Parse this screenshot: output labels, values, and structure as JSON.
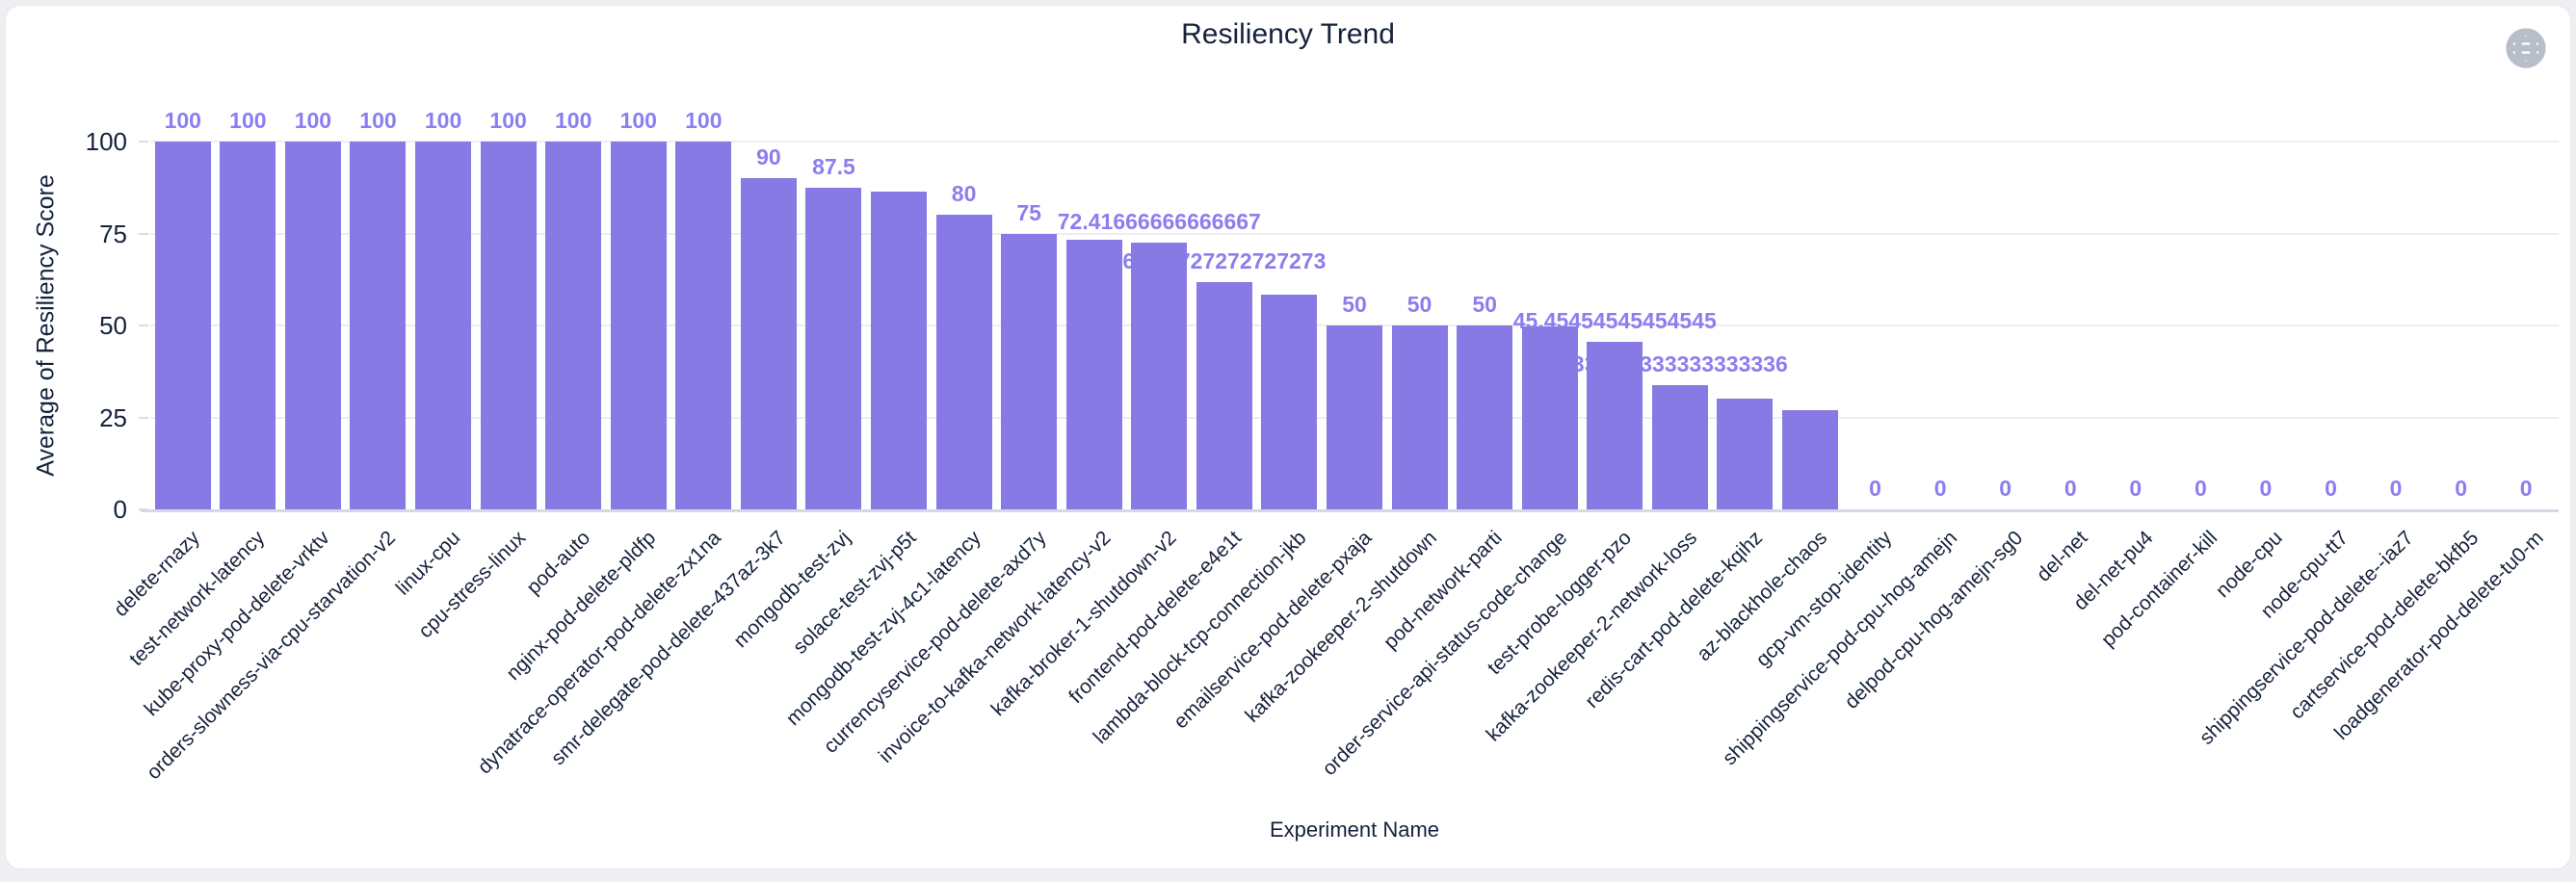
{
  "card": {
    "title": "Resiliency Trend"
  },
  "icons": {
    "globe": "globe-icon",
    "globe_color": "#b7bec9"
  },
  "chart_data": {
    "type": "bar",
    "title": "Resiliency Trend",
    "xlabel": "Experiment Name",
    "ylabel": "Average of Resiliency Score",
    "ylim": [
      0,
      100
    ],
    "yticks": [
      0,
      25,
      50,
      75,
      100
    ],
    "grid": true,
    "legend": "none",
    "bar_color": "#877ae4",
    "value_label_color": "#8b7eef",
    "categories": [
      "delete-rnazy",
      "test-network-latency",
      "kube-proxy-pod-delete-vrktv",
      "orders-slowness-via-cpu-starvation-v2",
      "linux-cpu",
      "cpu-stress-linux",
      "pod-auto",
      "nginx-pod-delete-pldfp",
      "dynatrace-operator-pod-delete-zx1na",
      "smr-delegate-pod-delete-437az-3k7",
      "mongodb-test-zvj",
      "solace-test-zvj-p5t",
      "mongodb-test-zvj-4c1-latency",
      "currencyservice-pod-delete-axd7y",
      "invoice-to-kafka-network-latency-v2",
      "kafka-broker-1-shutdown-v2",
      "frontend-pod-delete-e4e1t",
      "lambda-block-tcp-connection-jkb",
      "emailservice-pod-delete-pxaja",
      "kafka-zookeeper-2-shutdown",
      "pod-network-parti",
      "order-service-api-status-code-change",
      "test-probe-logger-pzo",
      "kafka-zookeeper-2-network-loss",
      "redis-cart-pod-delete-kqihz",
      "az-blackhole-chaos",
      "gcp-vm-stop-identity",
      "shippingservice-pod-cpu-hog-amejn",
      "delpod-cpu-hog-amejn-sg0",
      "del-net",
      "del-net-pu4",
      "pod-container-kill",
      "node-cpu",
      "node-cpu-tt7",
      "shippingservice-pod-delete--iaz7",
      "cartservice-pod-delete-bkfb5",
      "loadgenerator-pod-delete-tu0-m"
    ],
    "values": [
      100,
      100,
      100,
      100,
      100,
      100,
      100,
      100,
      100,
      90,
      87.5,
      86.36,
      80,
      75,
      73.33,
      72.41666666666667,
      61.72727272727273,
      58.5,
      50,
      50,
      50,
      49.7,
      45.45454545454545,
      33.833333333333336,
      30,
      27,
      0,
      0,
      0,
      0,
      0,
      0,
      0,
      0,
      0,
      0,
      0
    ],
    "bar_labels": [
      "100",
      "100",
      "100",
      "100",
      "100",
      "100",
      "100",
      "100",
      "100",
      "90",
      "87.5",
      null,
      "80",
      "75",
      null,
      "72.41666666666667",
      "61.72727272727273",
      null,
      "50",
      "50",
      "50",
      null,
      "45.45454545454545",
      "33.833333333333336",
      null,
      null,
      "0",
      "0",
      "0",
      "0",
      "0",
      "0",
      "0",
      "0",
      "0",
      "0",
      "0"
    ]
  }
}
